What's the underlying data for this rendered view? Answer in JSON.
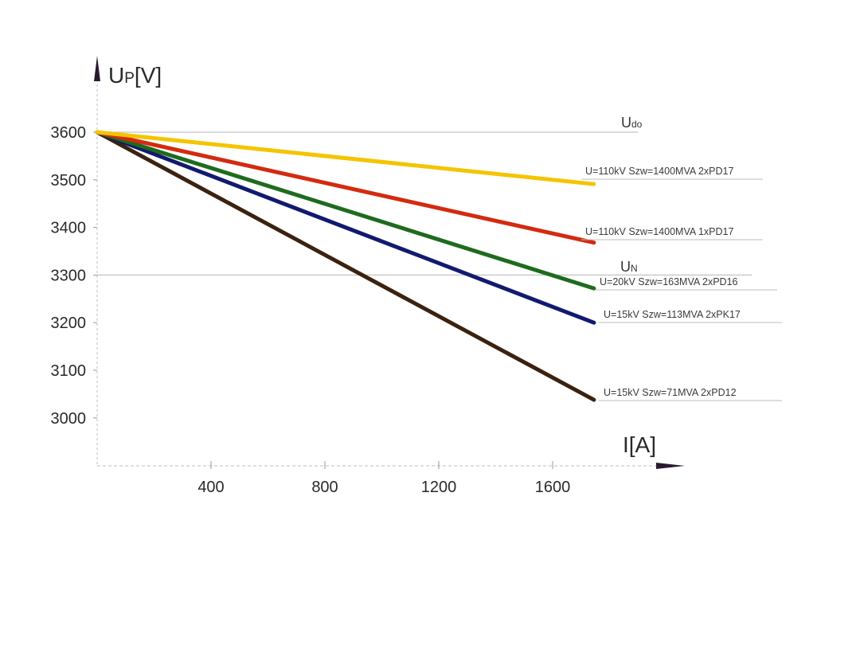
{
  "chart_data": {
    "type": "line",
    "title": "",
    "xlabel": "I[A]",
    "ylabel": "UP[V]",
    "ylabel_main": "U",
    "ylabel_sub": "P",
    "ylabel_unit": "[V]",
    "xlim": [
      0,
      2000
    ],
    "ylim": [
      2900,
      3700
    ],
    "x_ticks": [
      400,
      800,
      1200,
      1600
    ],
    "y_ticks": [
      3000,
      3100,
      3200,
      3300,
      3400,
      3500,
      3600
    ],
    "grid": false,
    "reference_lines": [
      {
        "name": "Udo",
        "main": "U",
        "sub": "do",
        "y": 3600,
        "x_end": 1900
      },
      {
        "name": "UN",
        "main": "U",
        "sub": "N",
        "y": 3300,
        "x_end": 2300
      }
    ],
    "series": [
      {
        "name": "U=110kV Szw=1400MVA 2xPD17",
        "color": "#f5c400",
        "x": [
          0,
          1745
        ],
        "values": [
          3600,
          3491
        ]
      },
      {
        "name": "U=110kV Szw=1400MVA 1xPD17",
        "color": "#d42a10",
        "x": [
          0,
          1745
        ],
        "values": [
          3600,
          3368
        ]
      },
      {
        "name": "U=20kV Szw=163MVA 2xPD16",
        "color": "#1e6b1e",
        "x": [
          0,
          1745
        ],
        "values": [
          3600,
          3272
        ]
      },
      {
        "name": "U=15kV Szw=113MVA 2xPK17",
        "color": "#121a6e",
        "x": [
          0,
          1745
        ],
        "values": [
          3600,
          3200
        ]
      },
      {
        "name": "U=15kV Szw=71MVA 2xPD12",
        "color": "#3b2210",
        "x": [
          0,
          1745
        ],
        "values": [
          3600,
          3038
        ]
      }
    ],
    "legend": "inline-right-of-line-ends"
  }
}
